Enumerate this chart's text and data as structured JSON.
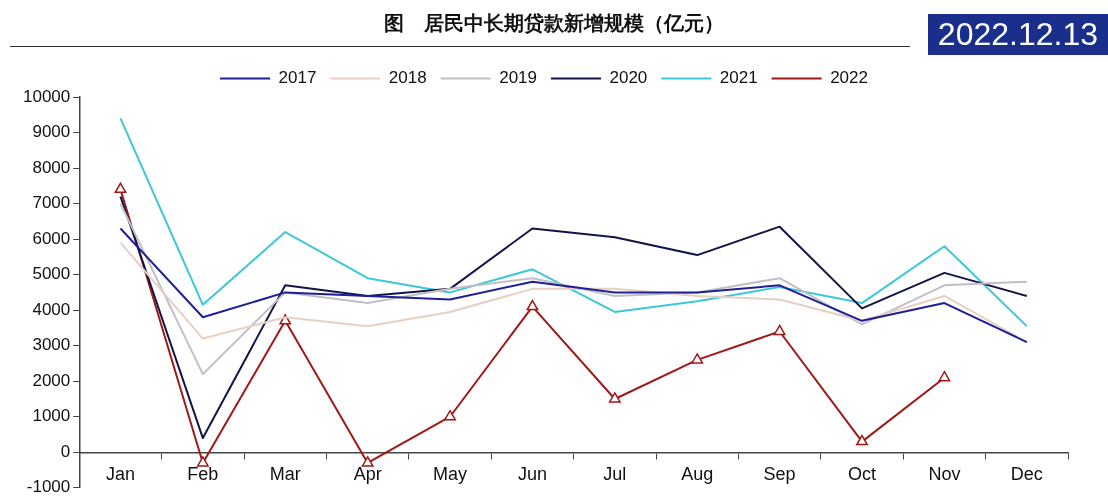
{
  "chart_data": {
    "type": "line",
    "title": "图　居民中长期贷款新增规模（亿元）",
    "annotations": [
      "2022.12.13"
    ],
    "categories": [
      "Jan",
      "Feb",
      "Mar",
      "Apr",
      "May",
      "Jun",
      "Jul",
      "Aug",
      "Sep",
      "Oct",
      "Nov",
      "Dec"
    ],
    "ylim": [
      -1000,
      10000
    ],
    "yticks": [
      -1000,
      0,
      1000,
      2000,
      3000,
      4000,
      5000,
      6000,
      7000,
      8000,
      9000,
      10000
    ],
    "grid": false,
    "legend": "top",
    "line_style": "solid",
    "series": [
      {
        "name": "2017",
        "color": "#1f1f99",
        "values": [
          6300,
          3800,
          4500,
          4400,
          4300,
          4800,
          4500,
          4500,
          4700,
          3700,
          4200,
          3100
        ]
      },
      {
        "name": "2018",
        "color": "#e8cfc4",
        "values": [
          5900,
          3200,
          3800,
          3550,
          3950,
          4600,
          4600,
          4400,
          4300,
          3700,
          4400,
          3100
        ]
      },
      {
        "name": "2019",
        "color": "#c0c0c4",
        "values": [
          7000,
          2200,
          4500,
          4200,
          4600,
          4900,
          4400,
          4500,
          4900,
          3600,
          4700,
          4800
        ]
      },
      {
        "name": "2020",
        "color": "#14144a",
        "values": [
          7200,
          400,
          4700,
          4400,
          4600,
          6300,
          6050,
          5550,
          6350,
          4050,
          5050,
          4400
        ]
      },
      {
        "name": "2021",
        "color": "#3cc8d8",
        "values": [
          9400,
          4150,
          6200,
          4900,
          4500,
          5150,
          3950,
          4250,
          4650,
          4200,
          5800,
          3550
        ]
      },
      {
        "name": "2022",
        "color": "#a01818",
        "marker": "triangle",
        "values": [
          7400,
          -300,
          3700,
          -300,
          1000,
          4100,
          1500,
          2600,
          3400,
          300,
          2100,
          null
        ]
      }
    ]
  }
}
